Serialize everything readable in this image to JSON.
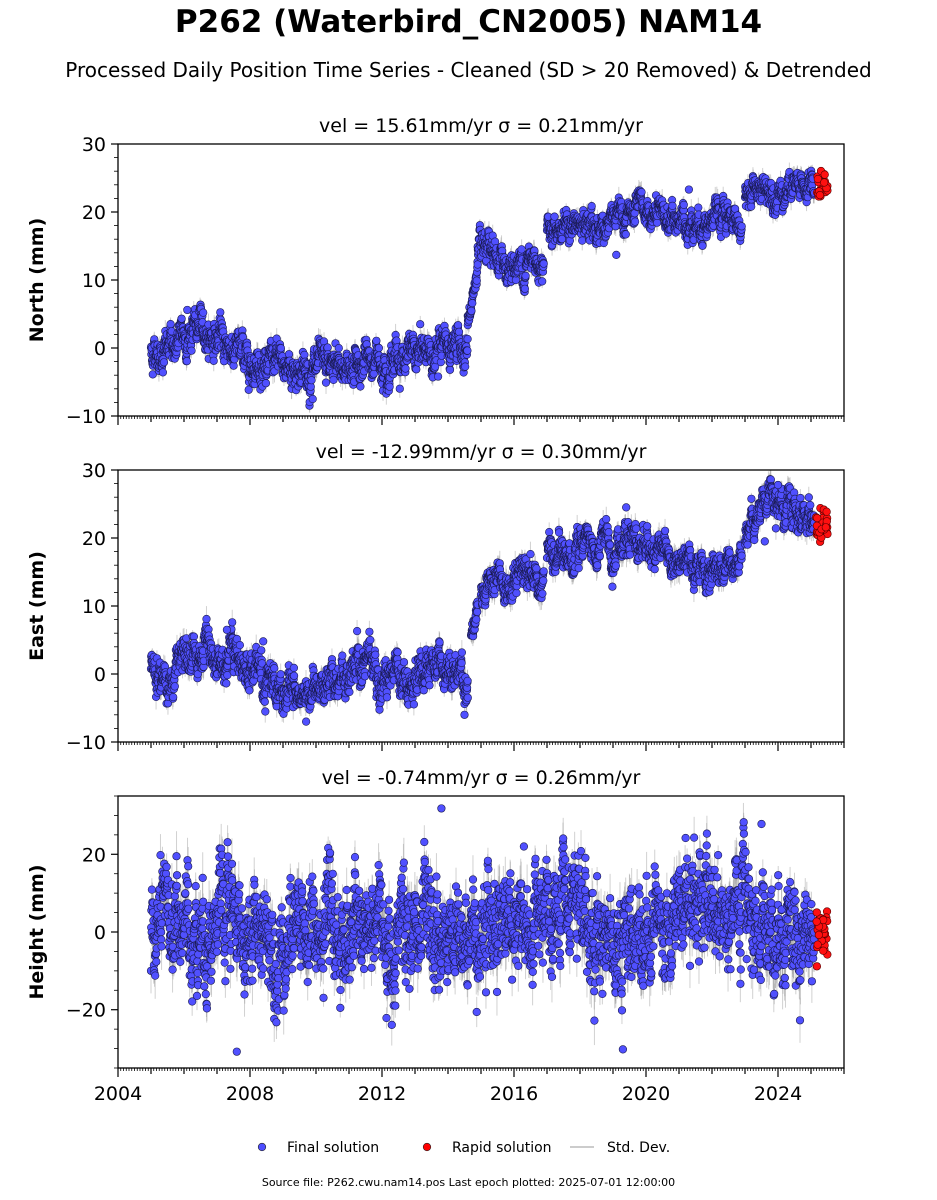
{
  "header": {
    "title": "P262 (Waterbird_CN2005) NAM14",
    "subtitle": "Processed Daily Position Time Series - Cleaned (SD > 20 Removed) & Detrended"
  },
  "footer": "Source file: P262.cwu.nam14.pos  Last epoch plotted: 2025-07-01 12:00:00",
  "legend": [
    {
      "label": "Final solution",
      "color": "#4d4dff",
      "marker": "circle"
    },
    {
      "label": "Rapid solution",
      "color": "#ff0000",
      "marker": "circle"
    },
    {
      "label": "Std. Dev.",
      "color": "#bbbbbb",
      "marker": "line"
    }
  ],
  "chart_data": [
    {
      "type": "scatter",
      "title": "vel = 15.61mm/yr   σ = 0.21mm/yr",
      "ylabel": "North (mm)",
      "xlim": [
        2004,
        2026
      ],
      "ylim": [
        -10,
        30
      ],
      "yticks": [
        -10,
        0,
        10,
        20,
        30
      ],
      "xticks": [
        2004,
        2008,
        2012,
        2016,
        2020,
        2024
      ],
      "show_xticklabels": false,
      "final_segments": [
        {
          "x": [
            2005.0,
            2005.5,
            2006.0,
            2006.3,
            2006.8,
            2007.5,
            2008.0,
            2008.7,
            2009.3,
            2010.0,
            2010.5,
            2011.0,
            2011.7,
            2012.3,
            2013.0,
            2013.5,
            2014.0,
            2014.6
          ],
          "y": [
            -0.5,
            -0.3,
            1.5,
            3.0,
            2.0,
            0.0,
            -1.5,
            -2.5,
            -3.0,
            -3.5,
            -3.0,
            -2.5,
            -2.0,
            -1.5,
            -1.0,
            -0.5,
            0.0,
            0.5
          ],
          "noise": 1.3
        },
        {
          "x": [
            2014.6,
            2014.7,
            2014.8,
            2014.9
          ],
          "y": [
            4.0,
            6.5,
            9.0,
            11.5
          ],
          "noise": 0.8
        },
        {
          "x": [
            2014.9,
            2015.2,
            2015.6,
            2016.0,
            2016.4,
            2016.9
          ],
          "y": [
            13.5,
            13.0,
            12.5,
            12.0,
            12.5,
            13.5
          ],
          "noise": 1.2
        },
        {
          "x": [
            2017.0,
            2017.5,
            2018.0,
            2018.5,
            2019.0,
            2019.5,
            2020.0,
            2020.5,
            2021.0,
            2021.5,
            2022.0,
            2022.5,
            2022.9
          ],
          "y": [
            18.0,
            18.0,
            17.5,
            17.8,
            18.5,
            19.5,
            19.5,
            19.0,
            18.5,
            18.5,
            18.7,
            18.5,
            18.5
          ],
          "noise": 1.1
        },
        {
          "x": [
            2023.0,
            2023.5,
            2024.0,
            2024.5,
            2025.1
          ],
          "y": [
            22.5,
            23.5,
            23.5,
            23.5,
            23.5
          ],
          "noise": 1.1
        }
      ],
      "outliers": [
        [
          2009.9,
          -7.5
        ],
        [
          2019.1,
          13.7
        ],
        [
          2021.3,
          23.3
        ],
        [
          2006.1,
          5.6
        ],
        [
          2013.7,
          -4.2
        ]
      ],
      "rapid": {
        "x_range": [
          2025.15,
          2025.5
        ],
        "y_center": 23.8,
        "spread": 1.0
      },
      "sigma": 0.9
    },
    {
      "type": "scatter",
      "title": "vel = -12.99mm/yr   σ = 0.30mm/yr",
      "ylabel": "East (mm)",
      "xlim": [
        2004,
        2026
      ],
      "ylim": [
        -10,
        30
      ],
      "yticks": [
        -10,
        0,
        10,
        20,
        30
      ],
      "xticks": [
        2004,
        2008,
        2012,
        2016,
        2020,
        2024
      ],
      "show_xticklabels": false,
      "final_segments": [
        {
          "x": [
            2005.0,
            2005.5,
            2006.0,
            2006.5,
            2007.0,
            2007.5,
            2008.0,
            2008.5,
            2009.0,
            2009.5,
            2010.0,
            2010.5,
            2011.0,
            2011.5,
            2012.0,
            2012.5,
            2013.0,
            2013.5,
            2014.0,
            2014.6
          ],
          "y": [
            0.5,
            -1.0,
            2.5,
            3.5,
            2.5,
            2.0,
            1.0,
            -1.0,
            -2.5,
            -3.0,
            -2.5,
            -1.5,
            0.0,
            0.5,
            1.0,
            0.5,
            -0.5,
            0.0,
            -0.5,
            -1.5
          ],
          "noise": 1.4
        },
        {
          "x": [
            2014.7,
            2014.8,
            2014.9
          ],
          "y": [
            6.0,
            8.0,
            10.5
          ],
          "noise": 0.8
        },
        {
          "x": [
            2015.0,
            2015.4,
            2015.8,
            2016.2,
            2016.6,
            2016.9
          ],
          "y": [
            13.0,
            13.5,
            13.0,
            14.5,
            14.5,
            14.0
          ],
          "noise": 1.2
        },
        {
          "x": [
            2017.0,
            2017.5,
            2018.0,
            2018.5,
            2019.0,
            2019.3,
            2019.8,
            2020.3,
            2020.8,
            2021.3,
            2021.8,
            2022.3,
            2022.9
          ],
          "y": [
            18.5,
            18.5,
            18.0,
            18.5,
            18.0,
            20.0,
            18.5,
            18.5,
            17.5,
            16.5,
            15.5,
            16.0,
            16.0
          ],
          "noise": 1.2
        },
        {
          "x": [
            2023.0,
            2023.4,
            2023.8,
            2024.2,
            2024.6,
            2025.1
          ],
          "y": [
            20.0,
            24.5,
            25.0,
            25.0,
            24.0,
            22.5
          ],
          "noise": 1.2
        }
      ],
      "outliers": [
        [
          2007.3,
          6.5
        ],
        [
          2009.7,
          -7.0
        ],
        [
          2014.5,
          -6.0
        ],
        [
          2019.4,
          24.5
        ],
        [
          2024.0,
          27.8
        ],
        [
          2023.6,
          19.5
        ],
        [
          2008.4,
          4.8
        ]
      ],
      "rapid": {
        "x_range": [
          2025.15,
          2025.5
        ],
        "y_center": 22.0,
        "spread": 1.4
      },
      "sigma": 1.0
    },
    {
      "type": "scatter",
      "title": "vel = -0.74mm/yr   σ = 0.26mm/yr",
      "ylabel": "Height (mm)",
      "xlim": [
        2004,
        2026
      ],
      "ylim": [
        -35,
        35
      ],
      "yticks": [
        -20,
        0,
        20
      ],
      "xticks": [
        2004,
        2008,
        2012,
        2016,
        2020,
        2024
      ],
      "show_xticklabels": true,
      "final_segments": [
        {
          "x": [
            2005.0,
            2006.0,
            2007.0,
            2008.0,
            2009.0,
            2010.0,
            2011.0,
            2012.0,
            2013.0,
            2014.0,
            2015.0,
            2015.7,
            2016.5,
            2017.5,
            2018.5,
            2019.5,
            2020.5,
            2021.5,
            2022.5,
            2023.5,
            2024.5,
            2025.1
          ],
          "y": [
            0.0,
            2.0,
            1.0,
            0.0,
            0.0,
            -1.0,
            -1.0,
            0.0,
            -1.0,
            -1.0,
            2.0,
            6.0,
            0.0,
            1.0,
            1.0,
            0.0,
            4.0,
            6.0,
            5.0,
            3.0,
            2.0,
            0.0
          ],
          "noise": 6.5
        }
      ],
      "outliers": [
        [
          2007.6,
          -30.8
        ],
        [
          2013.8,
          31.8
        ],
        [
          2019.3,
          -30.2
        ],
        [
          2023.5,
          27.8
        ],
        [
          2016.3,
          22.0
        ],
        [
          2021.2,
          24.2
        ]
      ],
      "rapid": {
        "x_range": [
          2025.15,
          2025.5
        ],
        "y_center": 1.0,
        "spread": 4.0
      },
      "sigma": 3.5
    }
  ]
}
